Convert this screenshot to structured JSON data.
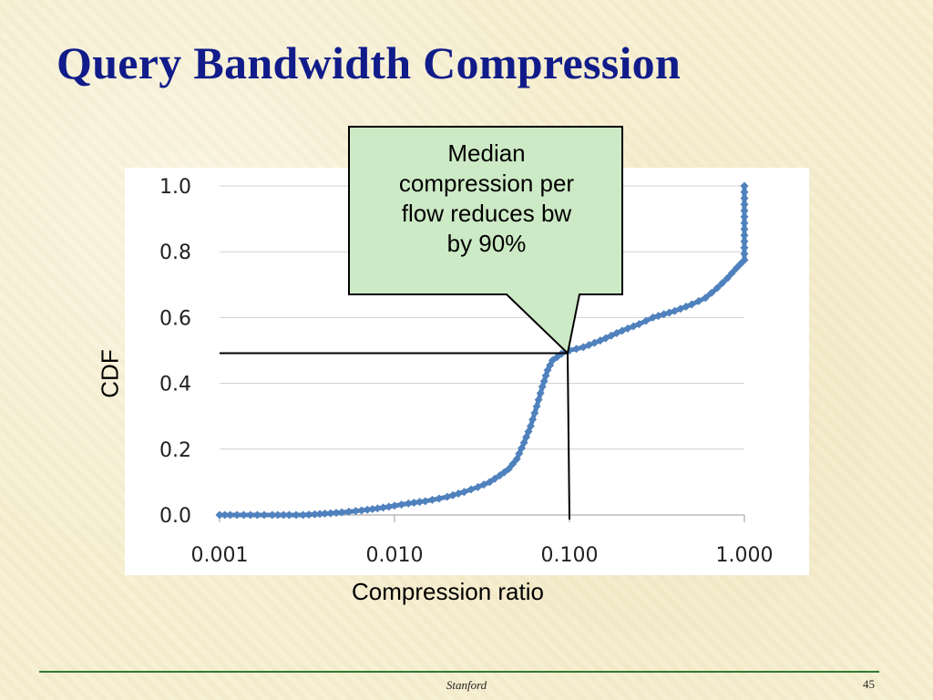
{
  "slide": {
    "title": "Query Bandwidth Compression",
    "footer_center": "Stanford",
    "page_number": "45"
  },
  "callout": {
    "lines": [
      "Median",
      "compression per",
      "flow reduces bw",
      "by 90%"
    ],
    "fill": "#cdeac6",
    "border": "#000000"
  },
  "colors": {
    "series": "#4f81bd",
    "grid": "#d0d0d0",
    "title": "#111c8a",
    "footer_rule": "#2f7a32"
  },
  "chart_data": {
    "type": "line",
    "title": "",
    "xlabel": "Compression ratio",
    "ylabel": "CDF",
    "x_scale": "log",
    "xlim": [
      0.001,
      1.0
    ],
    "ylim": [
      0.0,
      1.0
    ],
    "x_ticks": [
      "0.001",
      "0.010",
      "0.100",
      "1.000"
    ],
    "y_ticks": [
      "0.0",
      "0.2",
      "0.4",
      "0.6",
      "0.8",
      "1.0"
    ],
    "grid": true,
    "legend": "none",
    "median_marker": {
      "x": 0.1,
      "y": 0.5
    },
    "series": [
      {
        "color": "#4f81bd",
        "markers": "diamond",
        "x": [
          0.001,
          0.00115,
          0.0015,
          0.0018,
          0.002,
          0.0025,
          0.003,
          0.0035,
          0.004,
          0.005,
          0.006,
          0.007,
          0.008,
          0.01,
          0.012,
          0.015,
          0.018,
          0.02,
          0.025,
          0.03,
          0.035,
          0.04,
          0.045,
          0.05,
          0.055,
          0.06,
          0.065,
          0.07,
          0.075,
          0.08,
          0.09,
          0.1,
          0.12,
          0.15,
          0.2,
          0.25,
          0.3,
          0.4,
          0.5,
          0.6,
          0.7,
          0.8,
          0.9,
          1.0,
          1.0
        ],
        "y": [
          0.0,
          0.0,
          0.0,
          0.0,
          0.0,
          0.0,
          0.0,
          0.002,
          0.004,
          0.008,
          0.012,
          0.016,
          0.02,
          0.028,
          0.035,
          0.042,
          0.05,
          0.055,
          0.07,
          0.085,
          0.1,
          0.12,
          0.14,
          0.17,
          0.22,
          0.27,
          0.33,
          0.39,
          0.44,
          0.47,
          0.49,
          0.5,
          0.51,
          0.53,
          0.56,
          0.58,
          0.6,
          0.62,
          0.64,
          0.66,
          0.69,
          0.72,
          0.75,
          0.775,
          1.0
        ]
      }
    ]
  }
}
